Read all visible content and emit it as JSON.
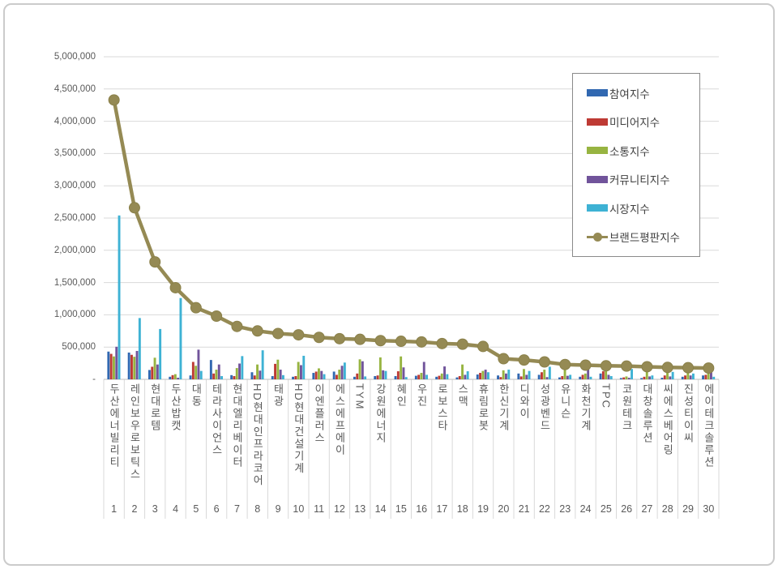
{
  "chart_data": {
    "type": "bar",
    "title": "",
    "xlabel": "",
    "ylabel": "",
    "grid": true,
    "legend_position": "top-right",
    "y_axis": {
      "min": 0,
      "max": 5000000,
      "step": 500000,
      "tick_labels": [
        "-",
        "500,000",
        "1,000,000",
        "1,500,000",
        "2,000,000",
        "2,500,000",
        "3,000,000",
        "3,500,000",
        "4,000,000",
        "4,500,000",
        "5,000,000"
      ]
    },
    "categories": [
      "두산에너빌리티",
      "레인보우로보틱스",
      "현대로템",
      "두산밥캣",
      "대동",
      "테라사이언스",
      "현대엘리베이터",
      "HD현대인프라코어",
      "태광",
      "HD현대건설기계",
      "이엔플러스",
      "에스에프에이",
      "TYM",
      "강원에너지",
      "혜인",
      "우진",
      "로보스타",
      "스맥",
      "휴림로봇",
      "한신기계",
      "디와이",
      "성광벤드",
      "유니슨",
      "화천기계",
      "TPC",
      "코원테크",
      "대창솔루션",
      "씨에스베어링",
      "진성티이씨",
      "에이테크솔루션"
    ],
    "category_ranks": [
      "1",
      "2",
      "3",
      "4",
      "5",
      "6",
      "7",
      "8",
      "9",
      "10",
      "11",
      "12",
      "13",
      "14",
      "15",
      "16",
      "17",
      "18",
      "19",
      "20",
      "21",
      "22",
      "23",
      "24",
      "25",
      "26",
      "27",
      "28",
      "29",
      "30"
    ],
    "series": [
      {
        "name": "참여지수",
        "type": "bar",
        "color": "#3168b1",
        "values": [
          430000,
          415000,
          145000,
          40000,
          60000,
          300000,
          65000,
          110000,
          50000,
          40000,
          100000,
          120000,
          40000,
          50000,
          50000,
          55000,
          40000,
          30000,
          75000,
          60000,
          90000,
          70000,
          30000,
          40000,
          90000,
          20000,
          20000,
          25000,
          40000,
          60000
        ]
      },
      {
        "name": "미디어지수",
        "type": "bar",
        "color": "#be3a34",
        "values": [
          395000,
          380000,
          195000,
          65000,
          270000,
          90000,
          50000,
          60000,
          240000,
          50000,
          120000,
          70000,
          90000,
          60000,
          125000,
          70000,
          55000,
          50000,
          100000,
          35000,
          45000,
          110000,
          50000,
          70000,
          125000,
          30000,
          40000,
          60000,
          60000,
          70000
        ]
      },
      {
        "name": "소통지수",
        "type": "bar",
        "color": "#97b441",
        "values": [
          355000,
          350000,
          335000,
          80000,
          210000,
          150000,
          175000,
          230000,
          305000,
          270000,
          170000,
          150000,
          310000,
          340000,
          355000,
          100000,
          90000,
          230000,
          130000,
          140000,
          160000,
          150000,
          230000,
          90000,
          140000,
          45000,
          130000,
          155000,
          185000,
          165000
        ]
      },
      {
        "name": "커뮤니티지수",
        "type": "bar",
        "color": "#71549b",
        "values": [
          505000,
          440000,
          230000,
          25000,
          460000,
          230000,
          245000,
          135000,
          150000,
          220000,
          130000,
          210000,
          280000,
          140000,
          185000,
          270000,
          200000,
          70000,
          150000,
          90000,
          70000,
          35000,
          55000,
          220000,
          70000,
          25000,
          45000,
          45000,
          60000,
          200000
        ]
      },
      {
        "name": "시장지수",
        "type": "bar",
        "color": "#3eb2d4",
        "values": [
          2540000,
          950000,
          780000,
          1260000,
          130000,
          50000,
          360000,
          450000,
          65000,
          365000,
          80000,
          260000,
          45000,
          130000,
          35000,
          70000,
          80000,
          125000,
          110000,
          150000,
          130000,
          195000,
          70000,
          40000,
          50000,
          160000,
          60000,
          115000,
          90000,
          40000
        ]
      },
      {
        "name": "브랜드평판지수",
        "type": "line",
        "color": "#958a54",
        "values": [
          4330000,
          2660000,
          1820000,
          1420000,
          1110000,
          980000,
          820000,
          750000,
          710000,
          690000,
          650000,
          630000,
          620000,
          600000,
          590000,
          580000,
          555000,
          545000,
          510000,
          320000,
          300000,
          270000,
          230000,
          220000,
          210000,
          205000,
          195000,
          185000,
          180000,
          175000
        ]
      }
    ]
  }
}
